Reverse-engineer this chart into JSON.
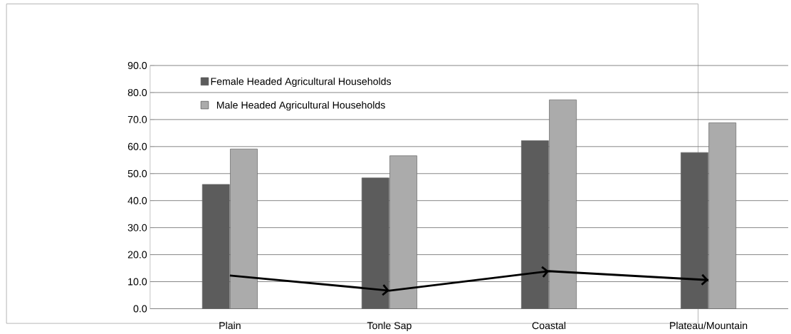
{
  "chart_data": {
    "type": "bar",
    "categories": [
      "Plain",
      "Tonle Sap",
      "Coastal",
      "Plateau/Mountain"
    ],
    "series": [
      {
        "name": "Female Headed Agricultural Households",
        "color": "#5c5c5c",
        "values": [
          46.0,
          48.4,
          62.2,
          57.8
        ]
      },
      {
        "name": "Male Headed Agricultural Households",
        "color": "#ababab",
        "values": [
          59.1,
          56.6,
          77.3,
          68.8
        ]
      },
      {
        "type": "line",
        "color": "#000000",
        "values": [
          12.3,
          6.7,
          13.9,
          10.6
        ]
      }
    ],
    "ylim": [
      0,
      90
    ],
    "yticks": [
      {
        "value": 0,
        "label": "0.0"
      },
      {
        "value": 10,
        "label": "10.0"
      },
      {
        "value": 20,
        "label": "20.0"
      },
      {
        "value": 30,
        "label": "30.0"
      },
      {
        "value": 40,
        "label": "40.0"
      },
      {
        "value": 50,
        "label": "50.0"
      },
      {
        "value": 60,
        "label": "60.0"
      },
      {
        "value": 70,
        "label": "70.0"
      },
      {
        "value": 80,
        "label": "80.0"
      },
      {
        "value": 90,
        "label": "90.0"
      }
    ],
    "grid": "y",
    "legend": "top left"
  }
}
